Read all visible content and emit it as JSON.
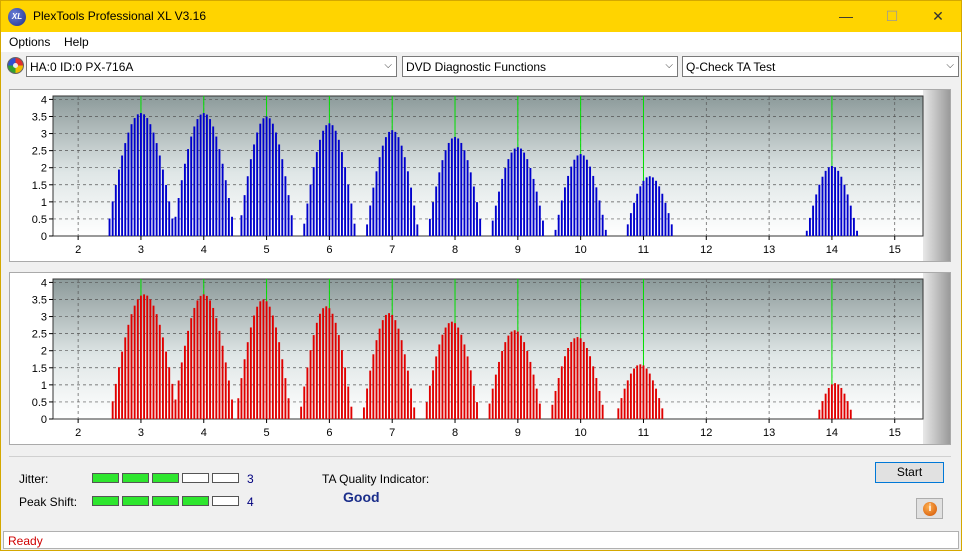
{
  "window": {
    "title": "PlexTools Professional XL V3.16",
    "icon_label": "XL",
    "controls": {
      "minimize": "—",
      "maximize": "☐",
      "close": "✕"
    }
  },
  "menu": {
    "items": [
      "Options",
      "Help"
    ]
  },
  "toolbar": {
    "drive": "HA:0 ID:0  PX-716A",
    "function": "DVD Diagnostic Functions",
    "test": "Q-Check TA Test"
  },
  "colors": {
    "upper_bars": "#0000cc",
    "lower_bars": "#e00000",
    "peak_lines": "#00e000",
    "title_bar": "#ffd400"
  },
  "chart_data": [
    {
      "type": "bar",
      "series_color": "blue",
      "x_ticks": [
        2,
        3,
        4,
        5,
        6,
        7,
        8,
        9,
        10,
        11,
        12,
        13,
        14,
        15
      ],
      "y_ticks": [
        "0",
        "0.5",
        "1",
        "1.5",
        "2",
        "2.5",
        "3",
        "3.5",
        "4"
      ],
      "xlim": [
        1.6,
        15.45
      ],
      "ylim": [
        0,
        4.1
      ],
      "peak_markers": [
        3,
        4,
        5,
        6,
        7,
        8,
        9,
        10,
        11,
        14
      ],
      "peaks": [
        {
          "center": 3.0,
          "height": 3.6,
          "halfwidth": 0.55
        },
        {
          "center": 4.0,
          "height": 3.6,
          "halfwidth": 0.5
        },
        {
          "center": 5.0,
          "height": 3.5,
          "halfwidth": 0.45
        },
        {
          "center": 6.0,
          "height": 3.3,
          "halfwidth": 0.43
        },
        {
          "center": 7.0,
          "height": 3.1,
          "halfwidth": 0.43
        },
        {
          "center": 8.0,
          "height": 2.9,
          "halfwidth": 0.45
        },
        {
          "center": 9.0,
          "height": 2.6,
          "halfwidth": 0.45
        },
        {
          "center": 10.0,
          "height": 2.4,
          "halfwidth": 0.42
        },
        {
          "center": 11.1,
          "height": 1.75,
          "halfwidth": 0.4
        },
        {
          "center": 14.0,
          "height": 2.05,
          "halfwidth": 0.42
        }
      ]
    },
    {
      "type": "bar",
      "series_color": "red",
      "x_ticks": [
        2,
        3,
        4,
        5,
        6,
        7,
        8,
        9,
        10,
        11,
        12,
        13,
        14,
        15
      ],
      "y_ticks": [
        "0",
        "0.5",
        "1",
        "1.5",
        "2",
        "2.5",
        "3",
        "3.5",
        "4"
      ],
      "xlim": [
        1.6,
        15.45
      ],
      "ylim": [
        0,
        4.1
      ],
      "peak_markers": [
        3,
        4,
        5,
        6,
        7,
        8,
        9,
        10,
        11,
        14
      ],
      "peaks": [
        {
          "center": 3.05,
          "height": 3.65,
          "halfwidth": 0.55
        },
        {
          "center": 4.0,
          "height": 3.65,
          "halfwidth": 0.5
        },
        {
          "center": 4.95,
          "height": 3.5,
          "halfwidth": 0.45
        },
        {
          "center": 5.95,
          "height": 3.3,
          "halfwidth": 0.43
        },
        {
          "center": 6.95,
          "height": 3.1,
          "halfwidth": 0.43
        },
        {
          "center": 7.95,
          "height": 2.85,
          "halfwidth": 0.45
        },
        {
          "center": 8.95,
          "height": 2.6,
          "halfwidth": 0.45
        },
        {
          "center": 9.95,
          "height": 2.4,
          "halfwidth": 0.45
        },
        {
          "center": 10.95,
          "height": 1.6,
          "halfwidth": 0.4
        },
        {
          "center": 14.05,
          "height": 1.05,
          "halfwidth": 0.3
        }
      ]
    }
  ],
  "metrics": {
    "jitter_label": "Jitter:",
    "jitter_value": "3",
    "jitter_level": 3,
    "peak_shift_label": "Peak Shift:",
    "peak_shift_value": "4",
    "peak_shift_level": 4,
    "segments_total": 5,
    "ta_label": "TA Quality Indicator:",
    "ta_value": "Good"
  },
  "buttons": {
    "start": "Start",
    "info": "i"
  },
  "status": {
    "text": "Ready"
  }
}
